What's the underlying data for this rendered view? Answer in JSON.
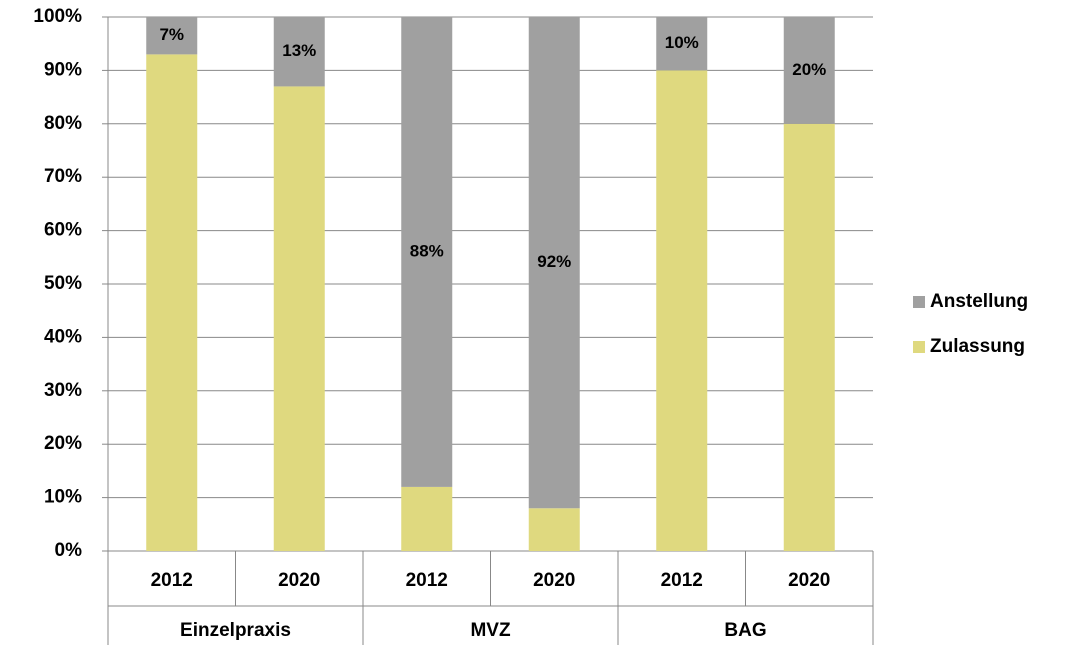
{
  "chart_data": {
    "type": "stacked_bar",
    "categories": [
      "2012",
      "2020",
      "2012",
      "2020",
      "2012",
      "2020"
    ],
    "groups": [
      "Einzelpraxis",
      "MVZ",
      "BAG"
    ],
    "series": [
      {
        "name": "Zulassung",
        "color": "#dfd97f",
        "values": [
          93,
          87,
          12,
          8,
          90,
          80
        ]
      },
      {
        "name": "Anstellung",
        "color": "#a0a0a0",
        "values": [
          7,
          13,
          88,
          92,
          10,
          20
        ],
        "value_labels": [
          "7%",
          "13%",
          "88%",
          "92%",
          "10%",
          "20%"
        ]
      }
    ],
    "ylim": [
      0,
      100
    ],
    "yticks": [
      {
        "value": 0,
        "label": "0%"
      },
      {
        "value": 10,
        "label": "10%"
      },
      {
        "value": 20,
        "label": "20%"
      },
      {
        "value": 30,
        "label": "30%"
      },
      {
        "value": 40,
        "label": "40%"
      },
      {
        "value": 50,
        "label": "50%"
      },
      {
        "value": 60,
        "label": "60%"
      },
      {
        "value": 70,
        "label": "70%"
      },
      {
        "value": 80,
        "label": "80%"
      },
      {
        "value": 90,
        "label": "90%"
      },
      {
        "value": 100,
        "label": "100%"
      }
    ],
    "grid": true,
    "legend": "right"
  }
}
